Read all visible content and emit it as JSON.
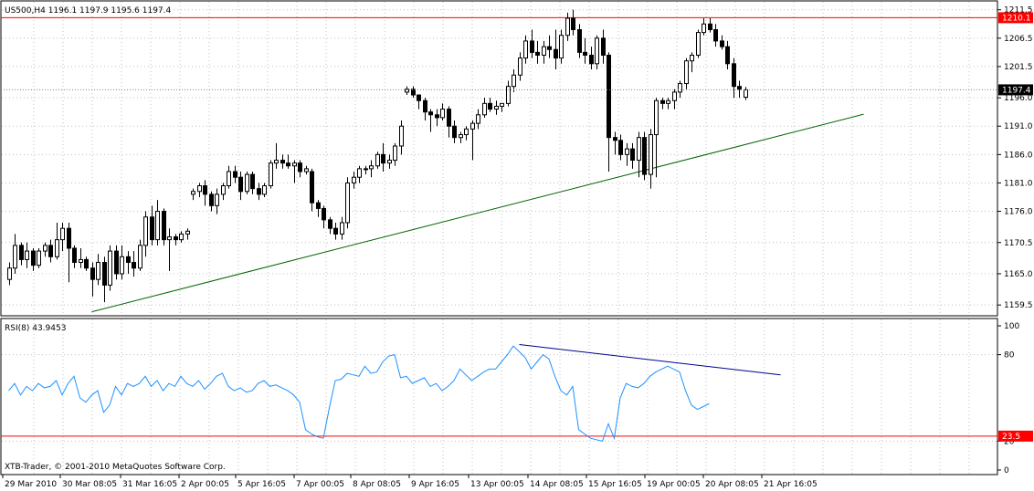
{
  "chart_data": [
    {
      "type": "candlestick",
      "title": "US500,H4  1196.1  1197.9  1195.6  1197.4",
      "ylim": [
        1157.6,
        1212.9
      ],
      "grid": true,
      "y_ticks": [
        "1211.5",
        "1206.5",
        "1201.5",
        "1196.0",
        "1191.0",
        "1186.0",
        "1181.0",
        "1176.0",
        "1170.5",
        "1165.0",
        "1159.5"
      ],
      "price_tags": [
        {
          "label": "1210.1",
          "value": 1210.1,
          "bg": "#ff0000",
          "fg": "#ffffff"
        },
        {
          "label": "1197.4",
          "value": 1197.4,
          "bg": "#000000",
          "fg": "#ffffff"
        }
      ],
      "horizontal_line": {
        "value": 1210.1,
        "color": "#ff0000"
      },
      "trendline": {
        "from": {
          "bar": 14,
          "value": 1158.3
        },
        "to": {
          "bar": 144,
          "value": 1193.1
        },
        "color": "#006400"
      },
      "x_ticks": [
        "29 Mar 2010",
        "30 Mar 08:05",
        "31 Mar 16:05",
        "2 Apr 00:05",
        "5 Apr 16:05",
        "7 Apr 00:05",
        "8 Apr 08:05",
        "9 Apr 16:05",
        "13 Apr 00:05",
        "14 Apr 08:05",
        "15 Apr 16:05",
        "19 Apr 00:05",
        "20 Apr 08:05",
        "21 Apr 16:05"
      ],
      "ohlc": [
        [
          1164.0,
          1167.0,
          1163.0,
          1166.0
        ],
        [
          1166.0,
          1172.0,
          1165.0,
          1170.0
        ],
        [
          1170.0,
          1170.5,
          1166.5,
          1167.5
        ],
        [
          1167.5,
          1170.5,
          1166.0,
          1169.0
        ],
        [
          1169.0,
          1169.5,
          1165.5,
          1166.5
        ],
        [
          1166.5,
          1169.5,
          1166.0,
          1169.0
        ],
        [
          1169.0,
          1170.5,
          1168.0,
          1170.0
        ],
        [
          1170.0,
          1171.0,
          1167.0,
          1168.0
        ],
        [
          1168.0,
          1174.0,
          1167.5,
          1171.0
        ],
        [
          1171.0,
          1174.0,
          1169.0,
          1173.0
        ],
        [
          1173.0,
          1174.0,
          1163.5,
          1169.5
        ],
        [
          1169.5,
          1170.0,
          1166.0,
          1167.0
        ],
        [
          1167.0,
          1169.5,
          1166.0,
          1167.5
        ],
        [
          1167.5,
          1168.0,
          1165.5,
          1166.0
        ],
        [
          1166.0,
          1167.0,
          1161.0,
          1164.0
        ],
        [
          1164.0,
          1168.5,
          1163.0,
          1167.0
        ],
        [
          1167.0,
          1168.0,
          1160.0,
          1163.0
        ],
        [
          1163.0,
          1170.0,
          1162.0,
          1169.0
        ],
        [
          1169.0,
          1170.0,
          1164.0,
          1165.0
        ],
        [
          1165.0,
          1170.0,
          1164.0,
          1168.0
        ],
        [
          1168.0,
          1169.0,
          1165.0,
          1167.0
        ],
        [
          1167.0,
          1169.0,
          1164.5,
          1166.0
        ],
        [
          1166.0,
          1171.0,
          1165.5,
          1170.0
        ],
        [
          1170.0,
          1176.0,
          1168.0,
          1175.0
        ],
        [
          1175.0,
          1177.0,
          1170.0,
          1171.0
        ],
        [
          1171.0,
          1178.0,
          1170.0,
          1176.0
        ],
        [
          1176.0,
          1176.5,
          1170.0,
          1171.0
        ],
        [
          1171.0,
          1173.0,
          1165.5,
          1171.5
        ],
        [
          1171.5,
          1172.0,
          1170.0,
          1171.0
        ],
        [
          1171.0,
          1172.5,
          1170.5,
          1172.0
        ],
        [
          1172.0,
          1173.0,
          1171.0,
          1172.5
        ],
        [
          1179.0,
          1180.0,
          1178.0,
          1179.5
        ],
        [
          1179.5,
          1181.0,
          1178.5,
          1180.5
        ],
        [
          1180.5,
          1181.5,
          1177.0,
          1179.0
        ],
        [
          1179.0,
          1179.5,
          1176.0,
          1177.0
        ],
        [
          1177.0,
          1180.0,
          1175.5,
          1179.0
        ],
        [
          1179.0,
          1181.0,
          1178.0,
          1180.5
        ],
        [
          1180.5,
          1184.0,
          1180.0,
          1183.0
        ],
        [
          1183.0,
          1184.0,
          1181.0,
          1182.0
        ],
        [
          1182.0,
          1183.0,
          1178.0,
          1179.5
        ],
        [
          1179.5,
          1183.0,
          1179.0,
          1182.5
        ],
        [
          1182.5,
          1183.0,
          1179.0,
          1180.0
        ],
        [
          1180.0,
          1181.0,
          1178.0,
          1179.0
        ],
        [
          1179.0,
          1181.0,
          1178.5,
          1180.5
        ],
        [
          1180.5,
          1185.0,
          1180.0,
          1184.5
        ],
        [
          1184.5,
          1188.0,
          1183.5,
          1185.0
        ],
        [
          1185.0,
          1186.0,
          1183.5,
          1184.5
        ],
        [
          1184.5,
          1186.0,
          1183.5,
          1184.0
        ],
        [
          1184.0,
          1185.0,
          1181.0,
          1184.5
        ],
        [
          1184.5,
          1185.0,
          1182.0,
          1183.0
        ],
        [
          1183.0,
          1184.0,
          1182.5,
          1183.5
        ],
        [
          1183.0,
          1183.5,
          1176.0,
          1177.5
        ],
        [
          1177.5,
          1178.0,
          1175.0,
          1176.5
        ],
        [
          1176.5,
          1177.0,
          1173.0,
          1174.5
        ],
        [
          1174.5,
          1175.0,
          1172.0,
          1173.0
        ],
        [
          1173.0,
          1174.0,
          1171.0,
          1172.0
        ],
        [
          1172.0,
          1175.0,
          1171.0,
          1174.0
        ],
        [
          1174.0,
          1182.0,
          1173.0,
          1181.0
        ],
        [
          1181.0,
          1183.0,
          1180.0,
          1182.0
        ],
        [
          1182.0,
          1184.0,
          1181.0,
          1183.5
        ],
        [
          1183.5,
          1184.0,
          1182.5,
          1183.5
        ],
        [
          1183.5,
          1185.0,
          1182.0,
          1184.0
        ],
        [
          1184.0,
          1186.5,
          1183.5,
          1186.0
        ],
        [
          1186.0,
          1188.0,
          1183.0,
          1184.5
        ],
        [
          1184.5,
          1186.0,
          1183.5,
          1185.0
        ],
        [
          1185.0,
          1188.0,
          1184.0,
          1187.5
        ],
        [
          1187.5,
          1192.0,
          1186.0,
          1191.0
        ],
        [
          1197.0,
          1198.0,
          1196.5,
          1197.5
        ],
        [
          1197.5,
          1198.0,
          1196.0,
          1196.5
        ],
        [
          1196.5,
          1196.0,
          1194.0,
          1195.5
        ],
        [
          1195.5,
          1196.0,
          1192.0,
          1193.5
        ],
        [
          1193.5,
          1194.0,
          1190.0,
          1193.0
        ],
        [
          1193.0,
          1194.0,
          1191.0,
          1192.5
        ],
        [
          1192.5,
          1195.0,
          1192.0,
          1194.0
        ],
        [
          1194.0,
          1194.5,
          1189.0,
          1191.0
        ],
        [
          1191.0,
          1192.0,
          1188.0,
          1189.0
        ],
        [
          1189.0,
          1190.0,
          1188.0,
          1189.5
        ],
        [
          1189.5,
          1191.0,
          1188.5,
          1190.5
        ],
        [
          1190.5,
          1192.0,
          1185.0,
          1191.5
        ],
        [
          1191.5,
          1194.0,
          1190.5,
          1193.0
        ],
        [
          1193.0,
          1196.0,
          1192.5,
          1195.0
        ],
        [
          1195.0,
          1196.0,
          1193.5,
          1194.0
        ],
        [
          1194.0,
          1195.5,
          1193.0,
          1194.5
        ],
        [
          1194.5,
          1195.0,
          1193.5,
          1195.0
        ],
        [
          1195.0,
          1199.0,
          1194.5,
          1198.0
        ],
        [
          1198.0,
          1201.0,
          1197.0,
          1200.0
        ],
        [
          1200.0,
          1204.0,
          1199.0,
          1203.0
        ],
        [
          1203.0,
          1207.0,
          1202.0,
          1206.0
        ],
        [
          1206.0,
          1208.0,
          1203.0,
          1204.0
        ],
        [
          1204.0,
          1206.0,
          1202.0,
          1203.5
        ],
        [
          1203.5,
          1206.0,
          1202.0,
          1205.0
        ],
        [
          1205.0,
          1207.0,
          1203.0,
          1204.5
        ],
        [
          1204.5,
          1208.0,
          1201.0,
          1203.0
        ],
        [
          1203.0,
          1208.0,
          1202.0,
          1207.0
        ],
        [
          1207.0,
          1211.0,
          1206.0,
          1210.0
        ],
        [
          1210.0,
          1211.5,
          1207.0,
          1208.0
        ],
        [
          1208.0,
          1209.0,
          1203.0,
          1204.0
        ],
        [
          1204.0,
          1206.5,
          1202.0,
          1203.5
        ],
        [
          1203.5,
          1205.0,
          1201.0,
          1202.0
        ],
        [
          1202.0,
          1207.0,
          1201.0,
          1206.5
        ],
        [
          1206.5,
          1208.0,
          1202.0,
          1203.5
        ],
        [
          1203.5,
          1204.0,
          1183.0,
          1189.0
        ],
        [
          1189.0,
          1190.0,
          1186.0,
          1188.5
        ],
        [
          1188.5,
          1189.5,
          1185.0,
          1186.0
        ],
        [
          1186.0,
          1188.0,
          1184.0,
          1187.0
        ],
        [
          1187.0,
          1188.0,
          1183.5,
          1185.0
        ],
        [
          1185.0,
          1190.0,
          1182.0,
          1189.0
        ],
        [
          1189.0,
          1190.0,
          1181.5,
          1182.5
        ],
        [
          1182.5,
          1190.5,
          1180.0,
          1189.5
        ],
        [
          1189.5,
          1196.0,
          1182.0,
          1195.5
        ],
        [
          1195.5,
          1196.0,
          1194.0,
          1195.0
        ],
        [
          1195.0,
          1196.0,
          1194.0,
          1195.5
        ],
        [
          1195.5,
          1197.5,
          1194.0,
          1197.0
        ],
        [
          1197.0,
          1199.0,
          1196.0,
          1198.5
        ],
        [
          1198.5,
          1203.0,
          1197.5,
          1202.5
        ],
        [
          1202.5,
          1204.0,
          1200.5,
          1203.5
        ],
        [
          1203.5,
          1208.0,
          1203.0,
          1207.5
        ],
        [
          1207.5,
          1210.0,
          1207.0,
          1209.0
        ],
        [
          1209.0,
          1210.0,
          1207.5,
          1208.0
        ],
        [
          1208.0,
          1209.0,
          1205.0,
          1206.0
        ],
        [
          1206.0,
          1207.0,
          1204.5,
          1205.0
        ],
        [
          1205.0,
          1206.0,
          1201.0,
          1202.0
        ],
        [
          1202.0,
          1203.0,
          1196.0,
          1198.0
        ],
        [
          1198.0,
          1199.0,
          1196.0,
          1197.5
        ],
        [
          1196.1,
          1197.9,
          1195.6,
          1197.4
        ]
      ]
    },
    {
      "type": "line",
      "title": "RSI(8) 43.9453",
      "ylim": [
        0,
        100
      ],
      "y_ticks": [
        "100",
        "80",
        "20",
        "0"
      ],
      "level_line": {
        "value": 23.5,
        "label": "23.5",
        "color": "#ff0000"
      },
      "trendline": {
        "from": {
          "bar": 86,
          "value": 87
        },
        "to": {
          "bar": 130,
          "value": 66
        },
        "color": "#00008b"
      },
      "values": [
        55,
        60,
        52,
        58,
        55,
        60,
        57,
        58,
        62,
        52,
        60,
        65,
        50,
        47,
        52,
        55,
        40,
        45,
        58,
        52,
        60,
        58,
        60,
        65,
        58,
        62,
        55,
        60,
        58,
        65,
        60,
        58,
        62,
        56,
        60,
        65,
        67,
        58,
        55,
        57,
        54,
        55,
        60,
        62,
        58,
        59,
        57,
        55,
        52,
        47,
        28,
        25,
        23,
        22,
        43,
        62,
        63,
        67,
        66,
        65,
        72,
        67,
        68,
        75,
        79,
        80,
        64,
        65,
        60,
        62,
        64,
        58,
        60,
        55,
        58,
        62,
        70,
        66,
        62,
        65,
        68,
        70,
        70,
        75,
        80,
        86,
        82,
        78,
        70,
        75,
        80,
        77,
        65,
        55,
        52,
        58,
        28,
        25,
        22,
        21,
        20,
        32,
        22,
        50,
        60,
        58,
        57,
        60,
        65,
        68,
        70,
        72,
        70,
        68,
        55,
        45,
        42,
        44,
        46
      ]
    }
  ],
  "footer": {
    "copyright": "XTB-Trader, © 2001-2010 MetaQuotes Software Corp."
  },
  "colors": {
    "up_candle": "#ffffff",
    "down_candle": "#000000",
    "rsi_line": "#1e90ff",
    "grid": "#c0c0c0"
  }
}
